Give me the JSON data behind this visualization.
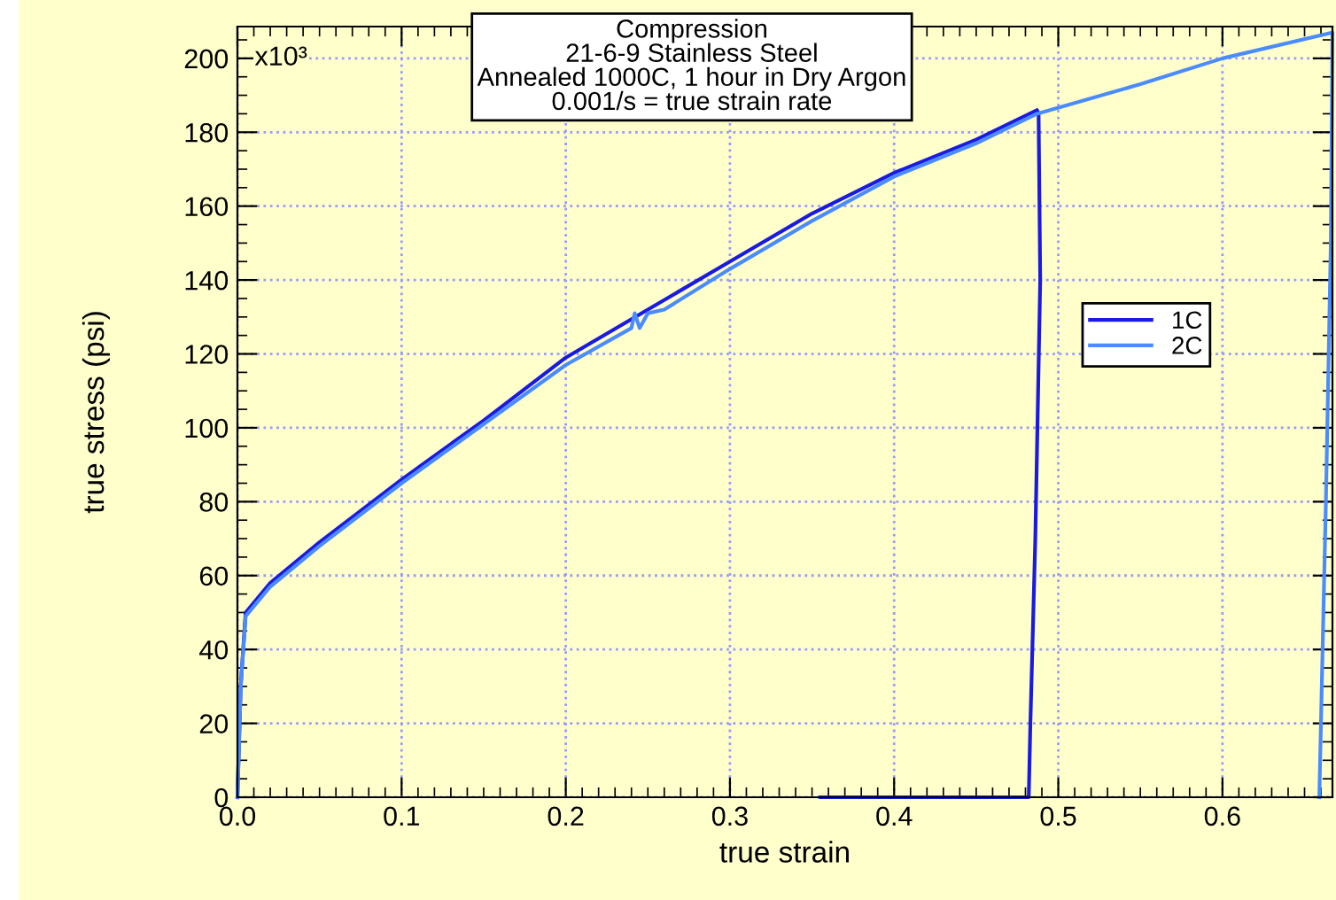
{
  "chart_data": {
    "type": "line",
    "xlabel": "true strain",
    "ylabel": "true stress (psi)",
    "annotations": [
      "Compression\n21-6-9 Stainless Steel\nAnnealed 1000C, 1 hour in Dry Argon\n0.001/s = true strain rate",
      "x10³"
    ],
    "xlim": [
      0,
      0.667
    ],
    "ylim": [
      0,
      208.6
    ],
    "xticks": [
      {
        "value": 0,
        "label": "0.0"
      },
      0.1,
      0.2,
      0.3,
      0.4,
      0.5,
      0.6
    ],
    "yticks": [
      0,
      20,
      40,
      60,
      80,
      100,
      120,
      140,
      160,
      180,
      200
    ],
    "grid": true,
    "legend": "right",
    "marker": "none",
    "line_style": "solid",
    "series": [
      {
        "name": "1C",
        "color": "#1a1ae0",
        "x": [
          0.0,
          0.002,
          0.005,
          0.02,
          0.05,
          0.1,
          0.15,
          0.2,
          0.25,
          0.3,
          0.35,
          0.4,
          0.45,
          0.487,
          0.488,
          0.489,
          0.486,
          0.483,
          0.482,
          0.355
        ],
        "values": [
          0,
          30,
          50,
          58,
          69,
          86,
          102,
          119,
          132,
          145,
          158,
          169,
          178,
          186,
          185,
          140,
          70,
          20,
          0,
          0
        ]
      },
      {
        "name": "2C",
        "color": "#4a8cff",
        "x": [
          0.0,
          0.002,
          0.005,
          0.02,
          0.05,
          0.1,
          0.15,
          0.2,
          0.24,
          0.242,
          0.245,
          0.25,
          0.26,
          0.3,
          0.35,
          0.4,
          0.45,
          0.487,
          0.55,
          0.6,
          0.667,
          0.666,
          0.663,
          0.66,
          0.659
        ],
        "values": [
          0,
          30,
          49,
          57,
          68,
          85,
          101,
          117,
          127,
          131,
          127,
          131,
          132,
          143,
          156,
          168,
          177,
          185,
          193,
          200,
          207,
          150,
          80,
          20,
          0
        ]
      }
    ]
  }
}
